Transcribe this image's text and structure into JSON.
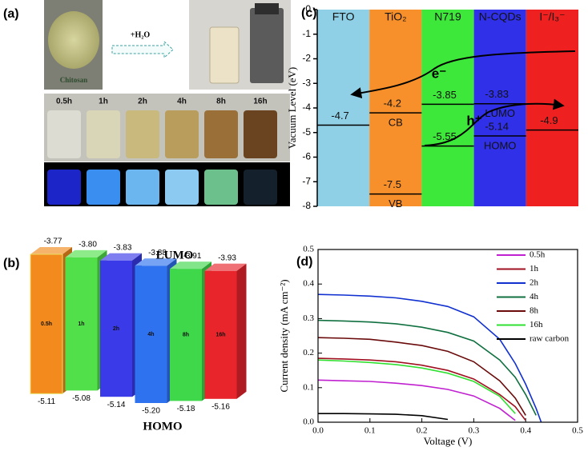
{
  "photo_panel": {
    "label": "(a)",
    "reagent": "+H₂O",
    "sample": "Chitosan",
    "times": [
      "0.5h",
      "1h",
      "2h",
      "4h",
      "8h",
      "16h"
    ]
  },
  "chart_data": [
    {
      "type": "range_bar",
      "title": "(b)",
      "categories": [
        "0.5h",
        "1h",
        "2h",
        "4h",
        "8h",
        "16h"
      ],
      "colors": [
        "#f28a1e",
        "#52e04a",
        "#3a3ae8",
        "#2f72f0",
        "#3fd84a",
        "#e8252b"
      ],
      "series": [
        {
          "name": "LUMO",
          "values": [
            -3.77,
            -3.8,
            -3.83,
            -3.88,
            -3.91,
            -3.93
          ],
          "value_labels": [
            "-3.77",
            "-3.80",
            "-3.83",
            "-3.88",
            "-3.91",
            "-3.93"
          ]
        },
        {
          "name": "HOMO",
          "values": [
            -5.11,
            -5.08,
            -5.14,
            -5.2,
            -5.18,
            -5.16
          ],
          "value_labels": [
            "-5.11",
            "-5.08",
            "-5.14",
            "-5.20",
            "-5.18",
            "-5.16"
          ]
        }
      ]
    },
    {
      "type": "energy_diagram",
      "title": "(c)",
      "ylabel": "Vacuum Level (eV)",
      "ylim": [
        -8,
        0
      ],
      "yticks": [
        0,
        -1,
        -2,
        -3,
        -4,
        -5,
        -6,
        -7,
        -8
      ],
      "columns": [
        {
          "name": "FTO",
          "color": "#8fd0e6",
          "levels": [
            {
              "value": -4.7
            }
          ]
        },
        {
          "name": "TiO₂",
          "color": "#f7902a",
          "levels": [
            {
              "value": -4.2,
              "name": "CB"
            },
            {
              "value": -7.5,
              "name": "VB"
            }
          ]
        },
        {
          "name": "N719",
          "color": "#3ee83a",
          "levels": [
            {
              "value": -3.85
            },
            {
              "value": -5.55
            }
          ]
        },
        {
          "name": "N-CQDs",
          "color": "#3030e8",
          "levels": [
            {
              "value": -3.83,
              "name": "LUMO"
            },
            {
              "value": -5.14,
              "name": "HOMO"
            }
          ]
        },
        {
          "name": "I⁻/I₃⁻",
          "color": "#ee2020",
          "levels": [
            {
              "value": -4.9
            }
          ]
        }
      ],
      "annotations": [
        "e⁻",
        "h⁺"
      ]
    },
    {
      "type": "line",
      "title": "(d)",
      "xlabel": "Voltage (V)",
      "ylabel": "Current density (mA cm⁻²)",
      "xlim": [
        0,
        0.5
      ],
      "xticks": [
        {
          "value": 0,
          "label": "0.0"
        },
        0.1,
        0.2,
        0.3,
        0.4,
        0.5
      ],
      "ylim": [
        0,
        0.5
      ],
      "yticks": [
        {
          "value": 0,
          "label": "0.0"
        },
        0.1,
        0.2,
        0.3,
        0.4,
        0.5
      ],
      "x": [
        0,
        0.05,
        0.1,
        0.15,
        0.2,
        0.25,
        0.3,
        0.35,
        0.38,
        0.4,
        0.42,
        0.43
      ],
      "series": [
        {
          "name": "0.5h",
          "color": "#c020d0",
          "values": [
            0.122,
            0.12,
            0.118,
            0.113,
            0.106,
            0.095,
            0.076,
            0.04,
            0.005,
            null,
            null,
            null
          ]
        },
        {
          "name": "1h",
          "color": "#a01020",
          "values": [
            0.185,
            0.183,
            0.18,
            0.175,
            0.165,
            0.15,
            0.125,
            0.08,
            0.045,
            0.005,
            null,
            null
          ]
        },
        {
          "name": "2h",
          "color": "#1030d0",
          "values": [
            0.37,
            0.368,
            0.365,
            0.36,
            0.35,
            0.335,
            0.305,
            0.24,
            0.17,
            0.11,
            0.04,
            0.0
          ]
        },
        {
          "name": "4h",
          "color": "#107040",
          "values": [
            0.295,
            0.293,
            0.29,
            0.285,
            0.275,
            0.26,
            0.235,
            0.18,
            0.13,
            0.08,
            0.02,
            null
          ]
        },
        {
          "name": "8h",
          "color": "#6a0a0a",
          "values": [
            0.245,
            0.243,
            0.24,
            0.232,
            0.222,
            0.205,
            0.175,
            0.12,
            0.07,
            0.02,
            null,
            null
          ]
        },
        {
          "name": "16h",
          "color": "#30e030",
          "values": [
            0.18,
            0.177,
            0.173,
            0.167,
            0.157,
            0.142,
            0.118,
            0.075,
            0.025,
            null,
            null,
            null
          ]
        },
        {
          "name": "raw carbon",
          "color": "#000000",
          "values": [
            0.025,
            0.025,
            0.024,
            0.023,
            0.019,
            0.008,
            null,
            null,
            null,
            null,
            null,
            null
          ]
        }
      ]
    }
  ]
}
